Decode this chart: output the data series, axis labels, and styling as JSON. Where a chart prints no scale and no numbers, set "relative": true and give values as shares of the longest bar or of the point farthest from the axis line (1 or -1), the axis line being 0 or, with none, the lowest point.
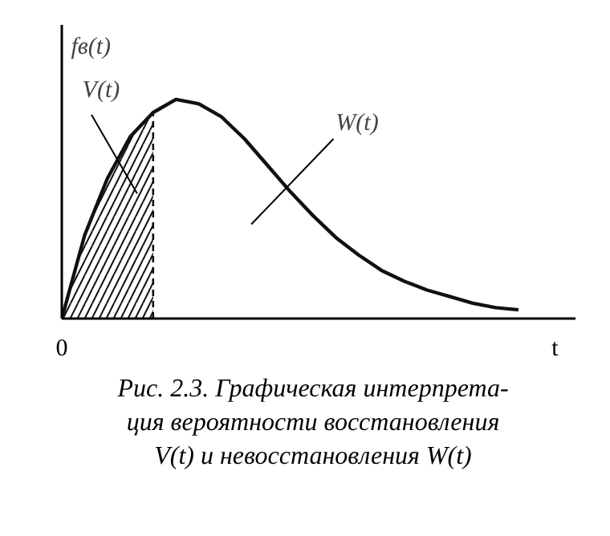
{
  "chart_data": {
    "type": "line",
    "relative": true,
    "ylabel": "fв(t)",
    "xlabel": "t",
    "categories": [
      null,
      null,
      null,
      null,
      null,
      null,
      null,
      null,
      null,
      null,
      null,
      null,
      null,
      null,
      null,
      null,
      null,
      null,
      null,
      null,
      null
    ],
    "series": [
      {
        "color": "#111111",
        "values": [
          0,
          0.38,
          0.64,
          0.83,
          0.94,
          1,
          0.98,
          0.92,
          0.82,
          0.7,
          0.58,
          0.47,
          0.37,
          0.29,
          0.22,
          0.17,
          0.13,
          0.1,
          0.07,
          0.05,
          0.04
        ]
      },
      {
        "type": "area",
        "color": "#111111",
        "line_style": "dashed",
        "values": [
          0,
          0.38,
          0.64,
          0.83,
          0.94,
          null,
          null,
          null,
          null,
          null,
          null,
          null,
          null,
          null,
          null,
          null,
          null,
          null,
          null,
          null,
          null
        ]
      }
    ],
    "annotations": [
      "0",
      "V(t)",
      "W(t)",
      "Рис. 2.3. Графическая интерпрета-\nция вероятности восстановления\nV(t) и невосстановления W(t)"
    ]
  }
}
